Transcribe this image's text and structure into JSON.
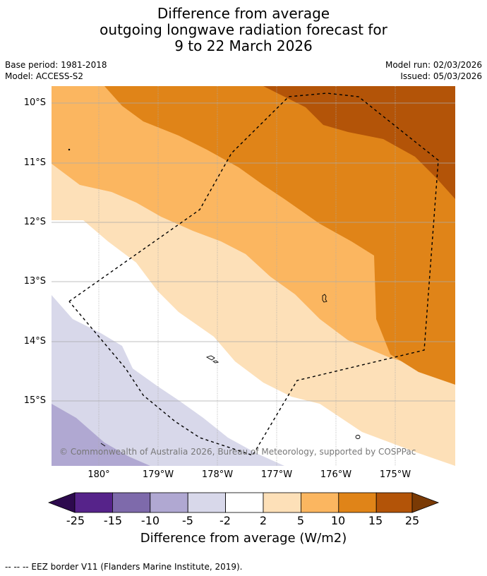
{
  "title": {
    "line1": "Difference from average",
    "line2": "outgoing longwave radiation forecast for",
    "line3": "9 to 22 March 2026"
  },
  "meta": {
    "base_period": "Base period: 1981-2018",
    "model": "Model: ACCESS-S2",
    "model_run": "Model run: 02/03/2026",
    "issued": "Issued: 05/03/2026"
  },
  "axes": {
    "lat_labels": [
      "10°S",
      "11°S",
      "12°S",
      "13°S",
      "14°S",
      "15°S"
    ],
    "lon_labels": [
      "180°",
      "179°W",
      "178°W",
      "177°W",
      "176°W",
      "175°W"
    ]
  },
  "colorbar": {
    "ticks": [
      "-25",
      "-15",
      "-10",
      "-5",
      "-2",
      "2",
      "5",
      "10",
      "15",
      "25"
    ],
    "colors": {
      "below": "#2d0a4e",
      "b1": "#56238a",
      "b2": "#7e6aab",
      "b3": "#b0a8d2",
      "b4": "#d8d8ea",
      "b5": "#ffffff",
      "b6": "#fde0b8",
      "b7": "#fbb660",
      "b8": "#e08418",
      "b9": "#b35408",
      "above": "#7a3a05"
    },
    "label": "Difference from average (W/m2)"
  },
  "copyright": "© Commonwealth of Australia 2026, Bureau of Meteorology, supported by COSPPac",
  "legend": "--  --  -- EEZ border V11 (Flanders Marine Institute, 2019)."
}
